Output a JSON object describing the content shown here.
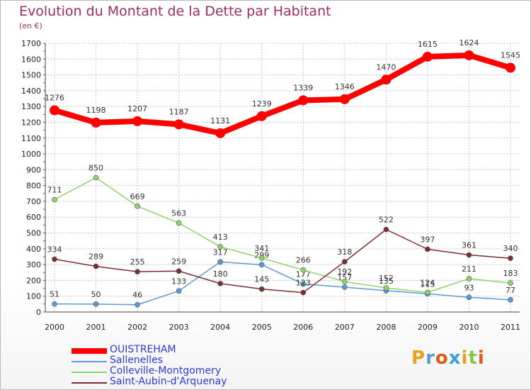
{
  "title": "Evolution du Montant de la Dette par Habitant",
  "unit": "(en €)",
  "logo": {
    "text": "Proxiti",
    "colors": [
      "#e8a020",
      "#5b9bd5",
      "#e35b1a",
      "#3aa0d8",
      "#e8a020",
      "#8bc34a",
      "#e35b1a"
    ]
  },
  "chart_data": {
    "type": "line",
    "title": "Evolution du Montant de la Dette par Habitant",
    "ylabel": "(en €)",
    "xlabel": "",
    "x": [
      "2000",
      "2001",
      "2002",
      "2003",
      "2004",
      "2005",
      "2006",
      "2007",
      "2008",
      "2009",
      "2010",
      "2011"
    ],
    "ylim": [
      0,
      1700
    ],
    "yticks": [
      0,
      100,
      200,
      300,
      400,
      500,
      600,
      700,
      800,
      900,
      1000,
      1100,
      1200,
      1300,
      1400,
      1500,
      1600,
      1700
    ],
    "grid": true,
    "legend": "bottom-left",
    "series": [
      {
        "name": "OUISTREHAM",
        "color": "#ff0000",
        "values": [
          1276,
          1198,
          1207,
          1187,
          1131,
          1239,
          1339,
          1346,
          1470,
          1615,
          1624,
          1545
        ]
      },
      {
        "name": "Sallenelles",
        "color": "#5b9bd5",
        "values": [
          51,
          50,
          46,
          133,
          317,
          299,
          177,
          157,
          135,
          115,
          93,
          77
        ]
      },
      {
        "name": "Colleville-Montgomery",
        "color": "#8ed36b",
        "values": [
          711,
          850,
          669,
          563,
          413,
          341,
          266,
          192,
          152,
          124,
          211,
          183
        ]
      },
      {
        "name": "Saint-Aubin-d'Arquenay",
        "color": "#7a2e2e",
        "values": [
          334,
          289,
          255,
          259,
          180,
          145,
          123,
          318,
          522,
          397,
          361,
          340
        ]
      }
    ]
  }
}
